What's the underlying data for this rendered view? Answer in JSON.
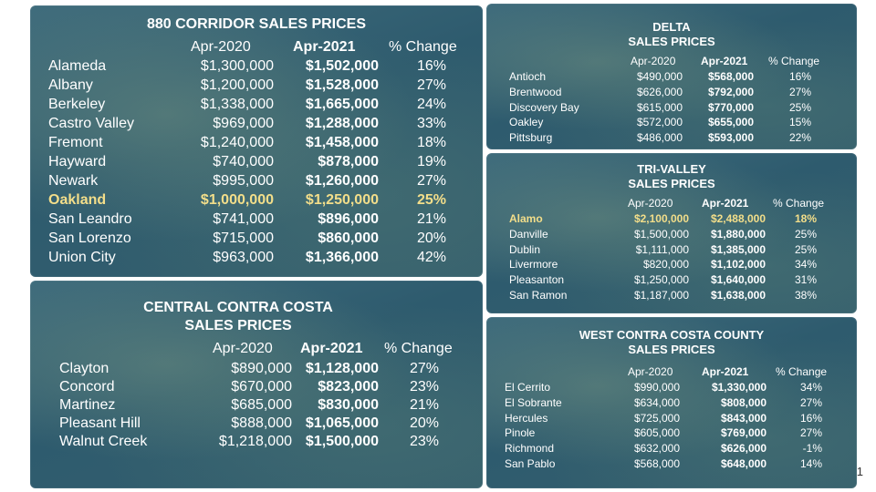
{
  "chart_data": [
    {
      "type": "table",
      "title": "880 CORRIDOR SALES PRICES",
      "columns": [
        "Apr-2020",
        "Apr-2021",
        "% Change"
      ],
      "highlight": "Oakland",
      "rows": [
        {
          "city": "Alameda",
          "apr2020": "$1,300,000",
          "apr2021": "$1,502,000",
          "change": "16%"
        },
        {
          "city": "Albany",
          "apr2020": "$1,200,000",
          "apr2021": "$1,528,000",
          "change": "27%"
        },
        {
          "city": "Berkeley",
          "apr2020": "$1,338,000",
          "apr2021": "$1,665,000",
          "change": "24%"
        },
        {
          "city": "Castro Valley",
          "apr2020": "$969,000",
          "apr2021": "$1,288,000",
          "change": "33%"
        },
        {
          "city": "Fremont",
          "apr2020": "$1,240,000",
          "apr2021": "$1,458,000",
          "change": "18%"
        },
        {
          "city": "Hayward",
          "apr2020": "$740,000",
          "apr2021": "$878,000",
          "change": "19%"
        },
        {
          "city": "Newark",
          "apr2020": "$995,000",
          "apr2021": "$1,260,000",
          "change": "27%"
        },
        {
          "city": "Oakland",
          "apr2020": "$1,000,000",
          "apr2021": "$1,250,000",
          "change": "25%"
        },
        {
          "city": "San Leandro",
          "apr2020": "$741,000",
          "apr2021": "$896,000",
          "change": "21%"
        },
        {
          "city": "San Lorenzo",
          "apr2020": "$715,000",
          "apr2021": "$860,000",
          "change": "20%"
        },
        {
          "city": "Union City",
          "apr2020": "$963,000",
          "apr2021": "$1,366,000",
          "change": "42%"
        }
      ]
    },
    {
      "type": "table",
      "title": "DELTA\nSALES PRICES",
      "columns": [
        "Apr-2020",
        "Apr-2021",
        "% Change"
      ],
      "highlight": "",
      "rows": [
        {
          "city": "Antioch",
          "apr2020": "$490,000",
          "apr2021": "$568,000",
          "change": "16%"
        },
        {
          "city": "Brentwood",
          "apr2020": "$626,000",
          "apr2021": "$792,000",
          "change": "27%"
        },
        {
          "city": "Discovery Bay",
          "apr2020": "$615,000",
          "apr2021": "$770,000",
          "change": "25%"
        },
        {
          "city": "Oakley",
          "apr2020": "$572,000",
          "apr2021": "$655,000",
          "change": "15%"
        },
        {
          "city": "Pittsburg",
          "apr2020": "$486,000",
          "apr2021": "$593,000",
          "change": "22%"
        }
      ]
    },
    {
      "type": "table",
      "title": "TRI-VALLEY\nSALES PRICES",
      "columns": [
        "Apr-2020",
        "Apr-2021",
        "% Change"
      ],
      "highlight": "Alamo",
      "rows": [
        {
          "city": "Alamo",
          "apr2020": "$2,100,000",
          "apr2021": "$2,488,000",
          "change": "18%"
        },
        {
          "city": "Danville",
          "apr2020": "$1,500,000",
          "apr2021": "$1,880,000",
          "change": "25%"
        },
        {
          "city": "Dublin",
          "apr2020": "$1,111,000",
          "apr2021": "$1,385,000",
          "change": "25%"
        },
        {
          "city": "Livermore",
          "apr2020": "$820,000",
          "apr2021": "$1,102,000",
          "change": "34%"
        },
        {
          "city": "Pleasanton",
          "apr2020": "$1,250,000",
          "apr2021": "$1,640,000",
          "change": "31%"
        },
        {
          "city": "San Ramon",
          "apr2020": "$1,187,000",
          "apr2021": "$1,638,000",
          "change": "38%"
        }
      ]
    },
    {
      "type": "table",
      "title": "CENTRAL CONTRA COSTA\nSALES PRICES",
      "columns": [
        "Apr-2020",
        "Apr-2021",
        "% Change"
      ],
      "highlight": "",
      "rows": [
        {
          "city": "Clayton",
          "apr2020": "$890,000",
          "apr2021": "$1,128,000",
          "change": "27%"
        },
        {
          "city": "Concord",
          "apr2020": "$670,000",
          "apr2021": "$823,000",
          "change": "23%"
        },
        {
          "city": "Martinez",
          "apr2020": "$685,000",
          "apr2021": "$830,000",
          "change": "21%"
        },
        {
          "city": "Pleasant Hill",
          "apr2020": "$888,000",
          "apr2021": "$1,065,000",
          "change": "20%"
        },
        {
          "city": "Walnut Creek",
          "apr2020": "$1,218,000",
          "apr2021": "$1,500,000",
          "change": "23%"
        }
      ]
    },
    {
      "type": "table",
      "title": "WEST CONTRA COSTA COUNTY\nSALES PRICES",
      "columns": [
        "Apr-2020",
        "Apr-2021",
        "% Change"
      ],
      "highlight": "",
      "rows": [
        {
          "city": "El Cerrito",
          "apr2020": "$990,000",
          "apr2021": "$1,330,000",
          "change": "34%"
        },
        {
          "city": "El Sobrante",
          "apr2020": "$634,000",
          "apr2021": "$808,000",
          "change": "27%"
        },
        {
          "city": "Hercules",
          "apr2020": "$725,000",
          "apr2021": "$843,000",
          "change": "16%"
        },
        {
          "city": "Pinole",
          "apr2020": "$605,000",
          "apr2021": "$769,000",
          "change": "27%"
        },
        {
          "city": "Richmond",
          "apr2020": "$632,000",
          "apr2021": "$626,000",
          "change": "-1%"
        },
        {
          "city": "San Pablo",
          "apr2020": "$568,000",
          "apr2021": "$648,000",
          "change": "14%"
        }
      ]
    }
  ],
  "page_number": "1",
  "colors": {
    "panel": "#2e5b6e",
    "text": "#ffffff",
    "highlight": "#f3de8a"
  }
}
